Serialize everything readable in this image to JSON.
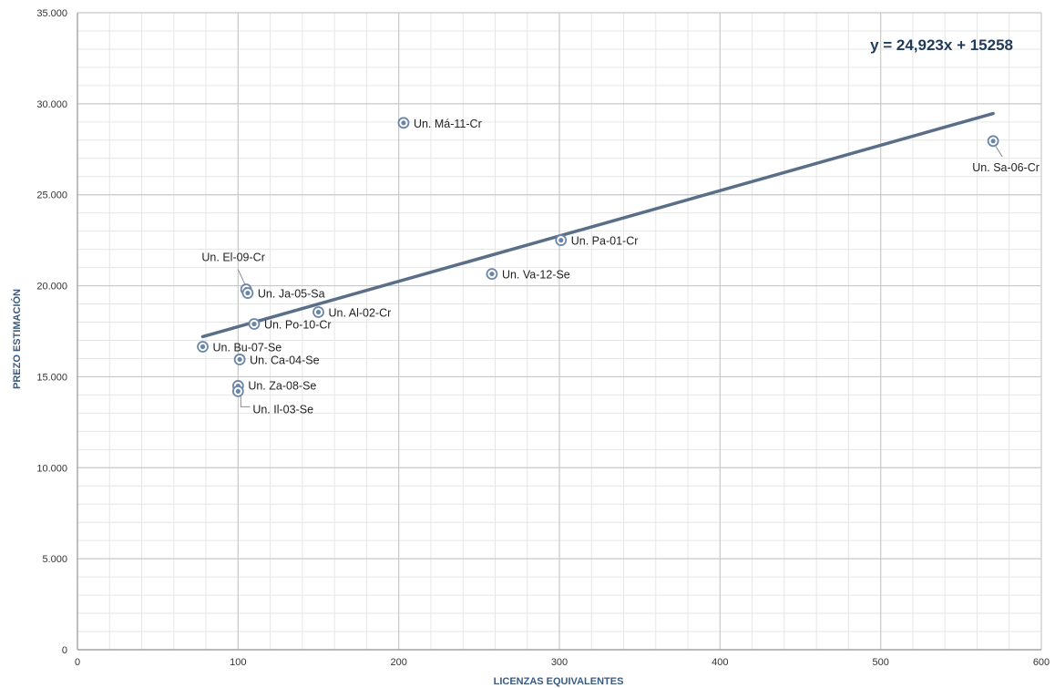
{
  "chart_data": {
    "type": "scatter",
    "title": "",
    "xlabel": "LICENZAS EQUIVALENTES",
    "ylabel": "PREZO ESTIMACIÓN",
    "xlim": [
      0,
      600
    ],
    "ylim": [
      0,
      35000
    ],
    "x_ticks": [
      {
        "value": 0,
        "label": "0"
      },
      {
        "value": 100,
        "label": "100"
      },
      {
        "value": 200,
        "label": "200"
      },
      {
        "value": 300,
        "label": "300"
      },
      {
        "value": 400,
        "label": "400"
      },
      {
        "value": 500,
        "label": "500"
      },
      {
        "value": 600,
        "label": "600"
      }
    ],
    "y_ticks": [
      {
        "value": 0,
        "label": "0"
      },
      {
        "value": 5000,
        "label": "5.000"
      },
      {
        "value": 10000,
        "label": "10.000"
      },
      {
        "value": 15000,
        "label": "15.000"
      },
      {
        "value": 20000,
        "label": "20.000"
      },
      {
        "value": 25000,
        "label": "25.000"
      },
      {
        "value": 30000,
        "label": "30.000"
      },
      {
        "value": 35000,
        "label": "35.000"
      }
    ],
    "grid": true,
    "legend": "none",
    "trendline": {
      "equation": "y = 24,923x + 15258",
      "slope": 24.923,
      "intercept": 15258,
      "x_range": [
        78,
        570
      ]
    },
    "colors": {
      "marker": "#6b86a8",
      "trendline": "#5a6e87",
      "major_grid": "#c8c8c8",
      "minor_grid": "#e6e6e6"
    },
    "points": [
      {
        "label": "Un. Má-11-Cr",
        "x": 203,
        "y": 28950
      },
      {
        "label": "Un. Sa-06-Cr",
        "x": 570,
        "y": 27950
      },
      {
        "label": "Un. Pa-01-Cr",
        "x": 301,
        "y": 22500
      },
      {
        "label": "Un. Va-12-Se",
        "x": 258,
        "y": 20650
      },
      {
        "label": "Un. El-09-Cr",
        "x": 105,
        "y": 19800
      },
      {
        "label": "Un. Ja-05-Sa",
        "x": 106,
        "y": 19600
      },
      {
        "label": "Un. Al-02-Cr",
        "x": 150,
        "y": 18550
      },
      {
        "label": "Un. Po-10-Cr",
        "x": 110,
        "y": 17900
      },
      {
        "label": "Un. Bu-07-Se",
        "x": 78,
        "y": 16650
      },
      {
        "label": "Un. Ca-04-Se",
        "x": 101,
        "y": 15950
      },
      {
        "label": "Un. Za-08-Se",
        "x": 100,
        "y": 14500
      },
      {
        "label": "Un. Il-03-Se",
        "x": 100,
        "y": 14200
      }
    ]
  }
}
